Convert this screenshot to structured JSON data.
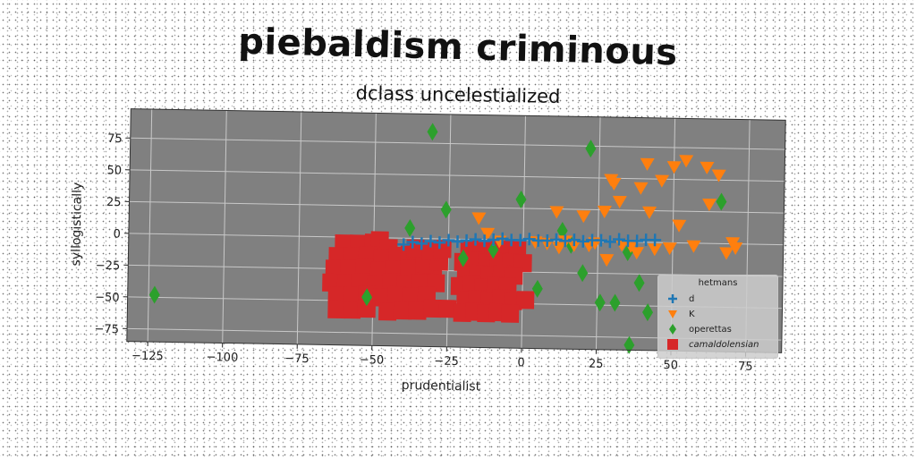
{
  "title": "piebaldism criminous",
  "subtitle": "dclass uncelestialized",
  "colors": {
    "plot_bg": "#808080",
    "grid": "#c8c8c8",
    "d": "#1f77b4",
    "K": "#ff7f0e",
    "operettas": "#2ca02c",
    "camaldolensian": "#d62728"
  },
  "chart_data": {
    "type": "scatter",
    "title": "dclass uncelestialized",
    "xlabel": "prudentialist",
    "ylabel": "syllogistically",
    "xlim": [
      -132,
      87
    ],
    "ylim": [
      -85,
      98
    ],
    "xticks": [
      -125,
      -100,
      -75,
      -50,
      -25,
      0,
      25,
      50,
      75
    ],
    "xtick_labels": [
      "−125",
      "−100",
      "−75",
      "−50",
      "−25",
      "0",
      "25",
      "50",
      "75"
    ],
    "yticks": [
      -75,
      -50,
      -25,
      0,
      25,
      50,
      75
    ],
    "ytick_labels": [
      "−75",
      "−50",
      "−25",
      "0",
      "25",
      "50",
      "75"
    ],
    "grid": true,
    "legend": {
      "title": "hetmans",
      "position": "lower-right"
    },
    "series": [
      {
        "name": "d",
        "marker": "plus",
        "color": "#1f77b4",
        "points": [
          [
            -40,
            -5
          ],
          [
            -37,
            -3
          ],
          [
            -34,
            -4
          ],
          [
            -31,
            -2
          ],
          [
            -28,
            -3
          ],
          [
            -25,
            -1
          ],
          [
            -22,
            -2
          ],
          [
            -19,
            -1
          ],
          [
            -16,
            0
          ],
          [
            -13,
            -1
          ],
          [
            -10,
            0
          ],
          [
            -7,
            1
          ],
          [
            -4,
            0
          ],
          [
            -1,
            0
          ],
          [
            2,
            1
          ],
          [
            5,
            0
          ],
          [
            8,
            0
          ],
          [
            11,
            1
          ],
          [
            14,
            0
          ],
          [
            17,
            1
          ],
          [
            20,
            0
          ],
          [
            23,
            1
          ],
          [
            26,
            1
          ],
          [
            29,
            0
          ],
          [
            32,
            2
          ],
          [
            35,
            1
          ],
          [
            38,
            1
          ],
          [
            41,
            2
          ],
          [
            44,
            2
          ]
        ]
      },
      {
        "name": "K",
        "marker": "triangle-down",
        "color": "#ff7f0e",
        "points": [
          [
            -15,
            17
          ],
          [
            -12,
            5
          ],
          [
            -8,
            -1
          ],
          [
            4,
            -1
          ],
          [
            8,
            -2
          ],
          [
            11,
            23
          ],
          [
            12,
            -5
          ],
          [
            14,
            0
          ],
          [
            17,
            -3
          ],
          [
            20,
            20
          ],
          [
            22,
            -3
          ],
          [
            24,
            -1
          ],
          [
            27,
            24
          ],
          [
            28,
            -14
          ],
          [
            29,
            49
          ],
          [
            30,
            46
          ],
          [
            32,
            32
          ],
          [
            33,
            -2
          ],
          [
            36,
            -3
          ],
          [
            38,
            -8
          ],
          [
            39,
            43
          ],
          [
            41,
            62
          ],
          [
            42,
            24
          ],
          [
            44,
            -5
          ],
          [
            46,
            49
          ],
          [
            49,
            -4
          ],
          [
            50,
            60
          ],
          [
            52,
            14
          ],
          [
            54,
            65
          ],
          [
            57,
            -2
          ],
          [
            61,
            60
          ],
          [
            62,
            31
          ],
          [
            65,
            54
          ],
          [
            68,
            -7
          ],
          [
            70,
            1
          ],
          [
            71,
            -3
          ]
        ]
      },
      {
        "name": "operettas",
        "marker": "diamond",
        "color": "#2ca02c",
        "points": [
          [
            -123,
            -48
          ],
          [
            -52,
            -47
          ],
          [
            -38,
            8
          ],
          [
            -31,
            84
          ],
          [
            -26,
            23
          ],
          [
            -20,
            -15
          ],
          [
            -10,
            -8
          ],
          [
            -1,
            32
          ],
          [
            5,
            -38
          ],
          [
            13,
            8
          ],
          [
            16,
            -3
          ],
          [
            20,
            -25
          ],
          [
            22,
            73
          ],
          [
            26,
            -48
          ],
          [
            31,
            -48
          ],
          [
            36,
            -81
          ],
          [
            35,
            -8
          ],
          [
            39,
            -32
          ],
          [
            42,
            -55
          ],
          [
            66,
            33
          ]
        ]
      },
      {
        "name": "camaldolensian",
        "marker": "square",
        "color": "#d62728",
        "points": [
          [
            -60,
            -5
          ],
          [
            -55,
            -5
          ],
          [
            -50,
            -4
          ],
          [
            -48,
            -2
          ],
          [
            -45,
            -8
          ],
          [
            -62,
            -15
          ],
          [
            -57,
            -15
          ],
          [
            -52,
            -14
          ],
          [
            -47,
            -16
          ],
          [
            -42,
            -14
          ],
          [
            -38,
            -13
          ],
          [
            -63,
            -25
          ],
          [
            -58,
            -25
          ],
          [
            -53,
            -24
          ],
          [
            -48,
            -26
          ],
          [
            -43,
            -25
          ],
          [
            -38,
            -24
          ],
          [
            -33,
            -22
          ],
          [
            -30,
            -28
          ],
          [
            -64,
            -36
          ],
          [
            -59,
            -36
          ],
          [
            -54,
            -35
          ],
          [
            -49,
            -37
          ],
          [
            -44,
            -35
          ],
          [
            -39,
            -36
          ],
          [
            -34,
            -35
          ],
          [
            -29,
            -35
          ],
          [
            -62,
            -46
          ],
          [
            -57,
            -46
          ],
          [
            -52,
            -45
          ],
          [
            -47,
            -47
          ],
          [
            -42,
            -45
          ],
          [
            -37,
            -46
          ],
          [
            -32,
            -45
          ],
          [
            -62,
            -57
          ],
          [
            -57,
            -57
          ],
          [
            -52,
            -56
          ],
          [
            -45,
            -58
          ],
          [
            -40,
            -57
          ],
          [
            -35,
            -57
          ],
          [
            -30,
            -55
          ],
          [
            -25,
            -55
          ],
          [
            -33,
            -20
          ],
          [
            -28,
            -18
          ],
          [
            -36,
            -8
          ],
          [
            -31,
            -10
          ],
          [
            -27,
            -8
          ],
          [
            -18,
            -8
          ],
          [
            -14,
            -9
          ],
          [
            -10,
            -8
          ],
          [
            -6,
            -7
          ],
          [
            -2,
            -8
          ],
          [
            -20,
            -18
          ],
          [
            -16,
            -17
          ],
          [
            -12,
            -18
          ],
          [
            -8,
            -17
          ],
          [
            -4,
            -18
          ],
          [
            0,
            -18
          ],
          [
            -19,
            -28
          ],
          [
            -15,
            -27
          ],
          [
            -11,
            -28
          ],
          [
            -7,
            -27
          ],
          [
            -3,
            -28
          ],
          [
            -21,
            -37
          ],
          [
            -17,
            -36
          ],
          [
            -13,
            -38
          ],
          [
            -9,
            -36
          ],
          [
            -5,
            -37
          ],
          [
            -19,
            -48
          ],
          [
            -15,
            -47
          ],
          [
            -11,
            -48
          ],
          [
            -7,
            -46
          ],
          [
            -3,
            -48
          ],
          [
            1,
            -47
          ],
          [
            -20,
            -58
          ],
          [
            -16,
            -57
          ],
          [
            -12,
            -58
          ],
          [
            -8,
            -57
          ],
          [
            -4,
            -58
          ]
        ]
      }
    ]
  }
}
